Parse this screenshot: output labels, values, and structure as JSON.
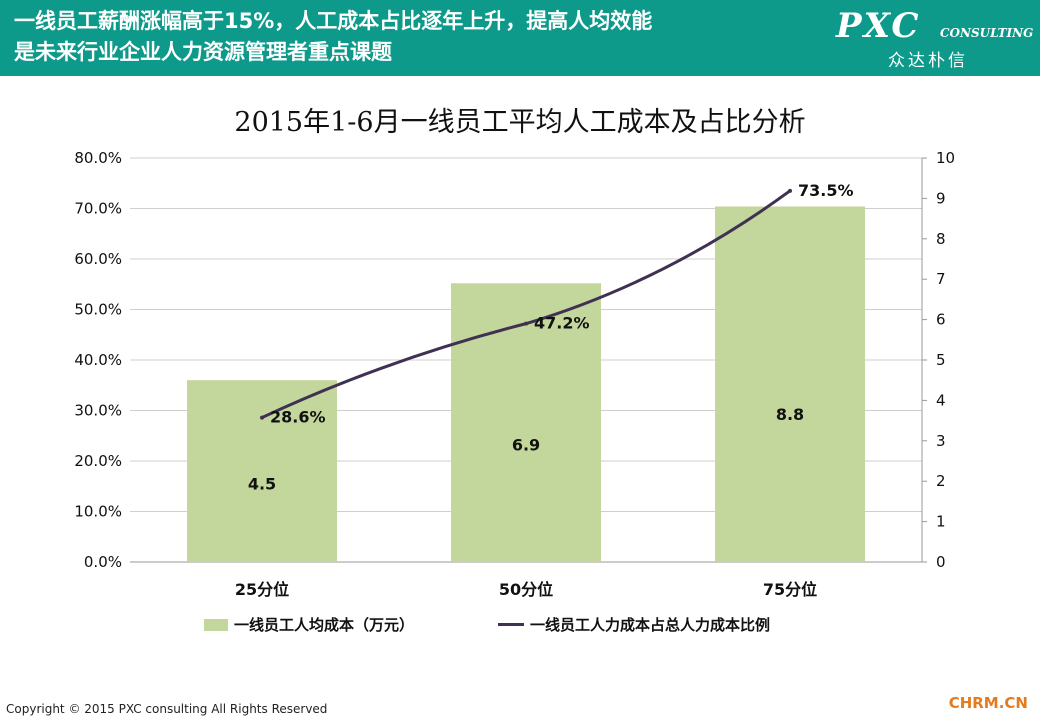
{
  "header": {
    "title_line1": "一线员工薪酬涨幅高于15%，人工成本占比逐年上升，提高人均效能",
    "title_line2": "是未来行业企业人力资源管理者重点课题",
    "logo_main": "PXC",
    "logo_sub": "CONSULTING",
    "logo_cn": "众达朴信"
  },
  "chart_data": {
    "type": "bar",
    "title": "2015年1-6月一线员工平均人工成本及占比分析",
    "categories": [
      "25分位",
      "50分位",
      "75分位"
    ],
    "series": [
      {
        "name": "一线员工人均成本（万元）",
        "kind": "bar",
        "axis": "right",
        "values": [
          4.5,
          6.9,
          8.8
        ],
        "labels": [
          "4.5",
          "6.9",
          "8.8"
        ],
        "color": "#c3d69b"
      },
      {
        "name": "一线员工人力成本占总人力成本比例",
        "kind": "line",
        "axis": "left",
        "values": [
          28.6,
          47.2,
          73.5
        ],
        "labels": [
          "28.6%",
          "47.2%",
          "73.5%"
        ],
        "color": "#3f3151"
      }
    ],
    "y_left": {
      "min": 0,
      "max": 80,
      "step": 10,
      "ticks": [
        "0.0%",
        "10.0%",
        "20.0%",
        "30.0%",
        "40.0%",
        "50.0%",
        "60.0%",
        "70.0%",
        "80.0%"
      ]
    },
    "y_right": {
      "min": 0,
      "max": 10,
      "step": 1,
      "ticks": [
        "0",
        "1",
        "2",
        "3",
        "4",
        "5",
        "6",
        "7",
        "8",
        "9",
        "10"
      ]
    },
    "grid": true,
    "legend_position": "bottom"
  },
  "footer": {
    "copyright": "Copyright © 2015  PXC consulting All Rights Reserved",
    "brand": "CHRM.CN"
  }
}
